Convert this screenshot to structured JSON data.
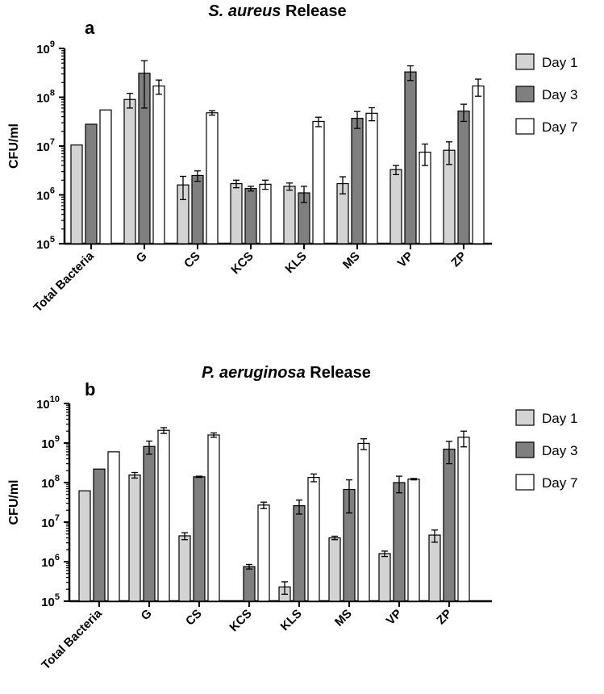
{
  "colors": {
    "day1": "#d3d3d3",
    "day3": "#7f7f7f",
    "day7": "#ffffff",
    "stroke": "#000000"
  },
  "chart_data": [
    {
      "type": "bar",
      "panel": "a",
      "title_italic": "S. aureus",
      "title_rest": " Release",
      "ylabel": "CFU/ml",
      "yscale": "log",
      "ylim": [
        100000,
        1000000000
      ],
      "yticks": [
        {
          "base": "10",
          "exp": "5"
        },
        {
          "base": "10",
          "exp": "6"
        },
        {
          "base": "10",
          "exp": "7"
        },
        {
          "base": "10",
          "exp": "8"
        },
        {
          "base": "10",
          "exp": "9"
        }
      ],
      "categories": [
        "Total Bacteria",
        "G",
        "CS",
        "KCS",
        "KLS",
        "MS",
        "VP",
        "ZP"
      ],
      "series": [
        {
          "name": "Day 1",
          "values": [
            10500000,
            90000000,
            1600000,
            1700000,
            1500000,
            1700000,
            3300000,
            8200000
          ],
          "errors": [
            null,
            30000000,
            800000,
            300000,
            250000,
            650000,
            700000,
            4000000
          ]
        },
        {
          "name": "Day 3",
          "values": [
            28000000,
            310000000,
            2500000,
            1350000,
            1100000,
            37000000,
            330000000,
            52000000
          ],
          "errors": [
            null,
            250000000,
            600000,
            150000,
            400000,
            14000000,
            110000000,
            20000000
          ]
        },
        {
          "name": "Day 7",
          "values": [
            55000000,
            170000000,
            48000000,
            1650000,
            32000000,
            47000000,
            7500000,
            170000000
          ],
          "errors": [
            null,
            55000000,
            5000000,
            350000,
            7000000,
            14000000,
            3500000,
            65000000
          ]
        }
      ],
      "legend_position": "top-right"
    },
    {
      "type": "bar",
      "panel": "b",
      "title_italic": "P. aeruginosa",
      "title_rest": " Release",
      "ylabel": "CFU/ml",
      "yscale": "log",
      "ylim": [
        100000,
        10000000000
      ],
      "yticks": [
        {
          "base": "10",
          "exp": "5"
        },
        {
          "base": "10",
          "exp": "6"
        },
        {
          "base": "10",
          "exp": "7"
        },
        {
          "base": "10",
          "exp": "8"
        },
        {
          "base": "10",
          "exp": "9"
        },
        {
          "base": "10",
          "exp": "10"
        }
      ],
      "categories": [
        "Total Bacteria",
        "G",
        "CS",
        "KCS",
        "KLS",
        "MS",
        "VP",
        "ZP"
      ],
      "series": [
        {
          "name": "Day 1",
          "values": [
            62000000,
            155000000,
            4500000,
            null,
            230000,
            4000000,
            1600000,
            4700000
          ],
          "errors": [
            null,
            25000000,
            900000,
            null,
            80000,
            400000,
            250000,
            1600000
          ]
        },
        {
          "name": "Day 3",
          "values": [
            220000000,
            820000000,
            140000000,
            750000,
            26000000,
            67000000,
            100000000,
            700000000
          ],
          "errors": [
            null,
            300000000,
            5000000,
            100000,
            10000000,
            50000000,
            45000000,
            400000000
          ]
        },
        {
          "name": "Day 7",
          "values": [
            600000000,
            2100000000,
            1600000000,
            27000000,
            135000000,
            980000000,
            122000000,
            1400000000
          ],
          "errors": [
            null,
            350000000,
            200000000,
            5000000,
            30000000,
            300000000,
            5000000,
            600000000
          ]
        }
      ],
      "legend_position": "top-right"
    }
  ]
}
